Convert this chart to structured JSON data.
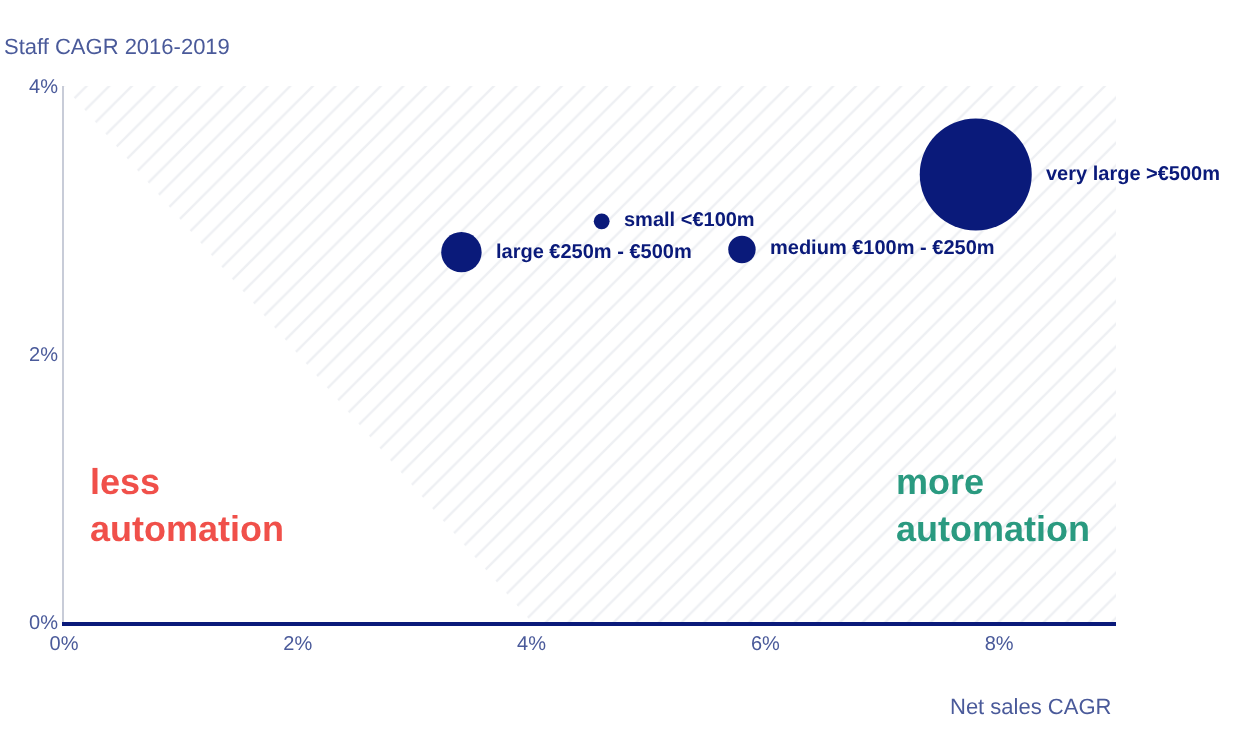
{
  "chart_data": {
    "type": "bubble",
    "ylabel": "Staff CAGR 2016-2019",
    "xlabel": "Net sales CAGR",
    "xlim": [
      0,
      9
    ],
    "xticks": [
      {
        "value": 0,
        "label": "0%"
      },
      {
        "value": 2,
        "label": "2%"
      },
      {
        "value": 4,
        "label": "4%"
      },
      {
        "value": 6,
        "label": "6%"
      },
      {
        "value": 8,
        "label": "8%"
      }
    ],
    "ylim": [
      0,
      4
    ],
    "yticks": [
      {
        "value": 0,
        "label": "0%"
      },
      {
        "value": 2,
        "label": "2%"
      },
      {
        "value": 4,
        "label": "4%"
      }
    ],
    "series": [
      {
        "type": "area",
        "x": [
          0,
          4,
          9,
          9,
          0
        ],
        "values": [
          4,
          0,
          0,
          4,
          4
        ],
        "color": "#dde1e8"
      },
      {
        "x": [
          7.8,
          4.6,
          3.4,
          5.8
        ],
        "values": [
          3.34,
          2.99,
          2.76,
          2.78
        ],
        "sizes": [
          1,
          0.02,
          0.13,
          0.06
        ],
        "color": "#0a1a7a",
        "value_labels": [
          "very large >€500m",
          "small <€100m",
          "large €250m - €500m",
          "medium €100m - €250m"
        ]
      }
    ],
    "annotations": [
      "less\nautomation",
      "more\nautomation"
    ]
  }
}
